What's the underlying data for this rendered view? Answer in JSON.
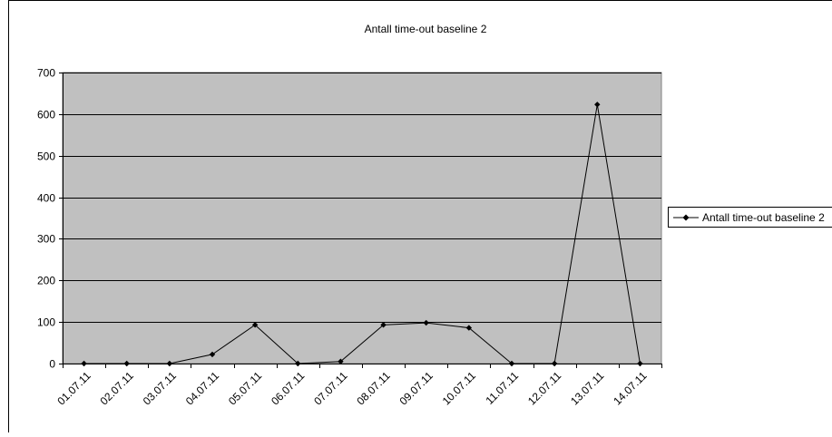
{
  "chart_data": {
    "type": "line",
    "title": "Antall time-out baseline 2",
    "xlabel": "",
    "ylabel": "",
    "categories": [
      "01.07.11",
      "02.07.11",
      "03.07.11",
      "04.07.11",
      "05.07.11",
      "06.07.11",
      "07.07.11",
      "08.07.11",
      "09.07.11",
      "10.07.11",
      "11.07.11",
      "12.07.11",
      "13.07.11",
      "14.07.11"
    ],
    "series": [
      {
        "name": "Antall time-out baseline 2",
        "values": [
          0,
          0,
          0,
          22,
          93,
          0,
          5,
          93,
          98,
          86,
          0,
          0,
          623,
          0
        ]
      }
    ],
    "ylim": [
      0,
      700
    ],
    "yticks": [
      0,
      100,
      200,
      300,
      400,
      500,
      600,
      700
    ],
    "grid": true,
    "legend_position": "right",
    "colors": {
      "plot_background": "#c0c0c0",
      "line": "#000000",
      "marker": "#000000",
      "gridline": "#000000",
      "page_background": "#ffffff"
    }
  }
}
